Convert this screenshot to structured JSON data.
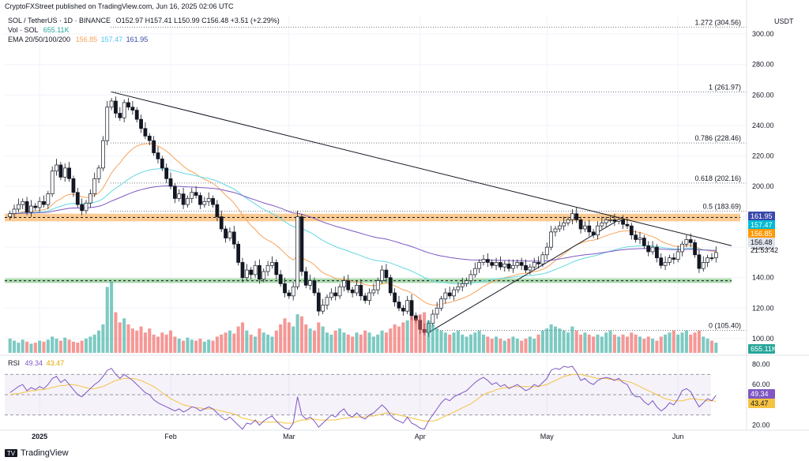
{
  "header": {
    "published": "CryptoFXStreet published on TradingView.com, Jun 16, 2025 02:06 UTC",
    "symbol_line": "SOL / TetherUS · 1D · BINANCE",
    "ohlc": "O152.97 H157.41 L150.99 C156.48 +3.51 (+2.29%)",
    "vol_label": "Vol · SOL",
    "vol_value": "655.11K",
    "ema_label": "EMA 20/50/100/200",
    "ema_values": [
      "156.85",
      "157.47",
      "161.95"
    ],
    "currency": "USDT"
  },
  "colors": {
    "up": "#26a69a",
    "down": "#ef5350",
    "ema20": "#f7a35c",
    "ema50": "#64d8e0",
    "ema100": "#7e57c2",
    "rsi": "#7e57c2",
    "rsi_ma": "#f5c342",
    "resistance_zone": "#f7a03a",
    "support_zone": "#66bb6a"
  },
  "footer": {
    "brand": "TradingView"
  },
  "chart_data": [
    {
      "type": "candlestick",
      "ylim": [
        88,
        312
      ],
      "y_ticks": [
        100,
        120,
        140,
        160,
        180,
        200,
        220,
        240,
        260,
        280,
        300
      ],
      "x_ticks": [
        {
          "label": "2025",
          "i": 7
        },
        {
          "label": "Feb",
          "i": 38
        },
        {
          "label": "Mar",
          "i": 66
        },
        {
          "label": "Apr",
          "i": 97
        },
        {
          "label": "May",
          "i": 127
        },
        {
          "label": "Jun",
          "i": 158
        }
      ],
      "closes": [
        182,
        185,
        188,
        190,
        183,
        187,
        186,
        190,
        188,
        195,
        210,
        214,
        206,
        212,
        205,
        196,
        188,
        184,
        189,
        195,
        205,
        212,
        230,
        252,
        256,
        248,
        245,
        255,
        252,
        250,
        244,
        238,
        233,
        230,
        222,
        218,
        212,
        205,
        200,
        192,
        195,
        188,
        192,
        196,
        194,
        188,
        190,
        192,
        188,
        180,
        172,
        166,
        170,
        162,
        150,
        140,
        145,
        142,
        148,
        139,
        144,
        148,
        150,
        142,
        136,
        130,
        128,
        134,
        180,
        144,
        135,
        138,
        130,
        118,
        122,
        127,
        130,
        128,
        134,
        138,
        132,
        130,
        135,
        128,
        125,
        130,
        132,
        138,
        145,
        140,
        130,
        124,
        120,
        118,
        125,
        115,
        112,
        106,
        104,
        110,
        116,
        120,
        126,
        130,
        128,
        132,
        134,
        136,
        138,
        142,
        146,
        150,
        152,
        150,
        148,
        150,
        147,
        149,
        146,
        148,
        150,
        148,
        145,
        147,
        150,
        149,
        155,
        160,
        170,
        172,
        174,
        176,
        178,
        182,
        178,
        172,
        174,
        170,
        168,
        174,
        176,
        178,
        178,
        177,
        178,
        175,
        174,
        168,
        165,
        166,
        161,
        157,
        160,
        153,
        148,
        150,
        153,
        152,
        157,
        162,
        165,
        163,
        155,
        146,
        150,
        153,
        152.97,
        156.48
      ],
      "volumes": [
        14,
        12,
        10,
        13,
        11,
        9,
        10,
        12,
        11,
        13,
        16,
        14,
        12,
        15,
        13,
        11,
        10,
        12,
        14,
        16,
        18,
        22,
        28,
        65,
        70,
        40,
        30,
        34,
        28,
        24,
        22,
        26,
        20,
        24,
        18,
        16,
        20,
        18,
        22,
        16,
        14,
        12,
        15,
        13,
        12,
        14,
        11,
        13,
        12,
        16,
        18,
        20,
        22,
        19,
        26,
        30,
        22,
        18,
        16,
        24,
        20,
        18,
        16,
        22,
        28,
        34,
        30,
        26,
        38,
        36,
        28,
        24,
        22,
        30,
        26,
        20,
        18,
        22,
        24,
        20,
        18,
        16,
        20,
        18,
        22,
        20,
        16,
        18,
        22,
        20,
        24,
        28,
        26,
        30,
        32,
        36,
        34,
        38,
        40,
        32,
        28,
        24,
        22,
        20,
        18,
        20,
        22,
        18,
        16,
        18,
        20,
        22,
        18,
        16,
        14,
        16,
        14,
        12,
        14,
        16,
        14,
        12,
        14,
        16,
        14,
        18,
        22,
        24,
        28,
        26,
        24,
        22,
        20,
        26,
        22,
        18,
        20,
        18,
        16,
        18,
        16,
        20,
        22,
        18,
        16,
        18,
        16,
        20,
        18,
        16,
        14,
        16,
        14,
        12,
        16,
        18,
        20,
        22,
        18,
        20,
        22,
        18,
        20,
        22,
        16,
        14,
        12,
        10
      ],
      "rsi": [
        52,
        55,
        58,
        60,
        54,
        57,
        55,
        58,
        56,
        60,
        66,
        68,
        62,
        65,
        60,
        55,
        50,
        48,
        52,
        56,
        60,
        63,
        68,
        74,
        76,
        70,
        66,
        70,
        67,
        64,
        60,
        56,
        52,
        50,
        45,
        42,
        40,
        38,
        36,
        34,
        36,
        33,
        35,
        38,
        37,
        34,
        36,
        38,
        36,
        32,
        28,
        25,
        28,
        24,
        20,
        16,
        22,
        21,
        25,
        20,
        24,
        27,
        29,
        24,
        20,
        17,
        16,
        22,
        48,
        30,
        26,
        28,
        24,
        18,
        22,
        26,
        30,
        28,
        33,
        36,
        30,
        28,
        32,
        28,
        26,
        30,
        32,
        36,
        40,
        36,
        30,
        26,
        24,
        22,
        28,
        22,
        20,
        17,
        16,
        24,
        30,
        36,
        42,
        46,
        44,
        48,
        50,
        52,
        54,
        58,
        62,
        65,
        67,
        64,
        60,
        62,
        58,
        60,
        56,
        58,
        60,
        57,
        54,
        56,
        60,
        58,
        62,
        66,
        74,
        76,
        75,
        78,
        77,
        78,
        72,
        64,
        66,
        62,
        60,
        64,
        66,
        67,
        66,
        64,
        66,
        62,
        60,
        52,
        48,
        48,
        43,
        40,
        44,
        38,
        34,
        37,
        42,
        40,
        46,
        54,
        56,
        53,
        45,
        38,
        42,
        46,
        44,
        49.34
      ],
      "rsi_ma": [
        50,
        51,
        51,
        52,
        53,
        54,
        54,
        55,
        55,
        56,
        57,
        58,
        59,
        59,
        60,
        60,
        59,
        58,
        57,
        56,
        56,
        57,
        58,
        60,
        62,
        64,
        65,
        66,
        66,
        66,
        65,
        64,
        62,
        60,
        58,
        55,
        52,
        49,
        46,
        44,
        42,
        40,
        39,
        38,
        37,
        37,
        36,
        36,
        36,
        35,
        34,
        33,
        32,
        31,
        29,
        27,
        26,
        25,
        24,
        23,
        23,
        23,
        23,
        23,
        23,
        22,
        22,
        22,
        24,
        25,
        25,
        26,
        26,
        25,
        25,
        25,
        25,
        25,
        26,
        27,
        27,
        28,
        28,
        28,
        28,
        29,
        29,
        30,
        31,
        32,
        32,
        31,
        30,
        29,
        28,
        27,
        26,
        25,
        24,
        24,
        24,
        25,
        27,
        29,
        31,
        33,
        35,
        37,
        39,
        41,
        44,
        47,
        50,
        52,
        53,
        55,
        56,
        57,
        57,
        58,
        58,
        58,
        58,
        58,
        58,
        58,
        59,
        60,
        62,
        64,
        66,
        68,
        69,
        70,
        70,
        70,
        69,
        68,
        67,
        66,
        66,
        66,
        65,
        65,
        64,
        64,
        63,
        62,
        60,
        58,
        56,
        54,
        52,
        50,
        48,
        46,
        45,
        44,
        44,
        44,
        45,
        46,
        46,
        45,
        45,
        44,
        44,
        43.47
      ],
      "ema20_values": [
        156.85
      ],
      "ema50_values": [
        157.47
      ],
      "ema100_values": [
        161.95
      ],
      "price_badges": [
        {
          "label": "161.95",
          "value": 161.95,
          "color": "#3949ab"
        },
        {
          "label": "157.47",
          "value": 157.47,
          "color": "#00bcd4"
        },
        {
          "label": "156.85",
          "value": 156.85,
          "color": "#ff9800"
        },
        {
          "label": "156.48",
          "value": 156.48,
          "color": "#e0e3eb"
        }
      ],
      "countdown": "21:53:42",
      "fib_levels": [
        {
          "label": "1.272 (304.56)",
          "value": 304.56
        },
        {
          "label": "1 (261.97)",
          "value": 261.97
        },
        {
          "label": "0.786 (228.46)",
          "value": 228.46
        },
        {
          "label": "0.618 (202.16)",
          "value": 202.16
        },
        {
          "label": "0.5 (183.69)",
          "value": 183.69
        },
        {
          "label": "0 (105.40)",
          "value": 105.4
        }
      ],
      "zones": [
        {
          "name": "resistance",
          "from": 177,
          "to": 182
        },
        {
          "name": "support",
          "from": 136.5,
          "to": 139.5
        }
      ]
    },
    {
      "type": "line",
      "title": "RSI",
      "series": [
        {
          "name": "RSI",
          "value_label": "49.34"
        },
        {
          "name": "RSI MA",
          "value_label": "43.47"
        }
      ],
      "rsi_label": "RSI",
      "rsi_value": "49.34",
      "rsi_ma_value": "43.47",
      "ylim": [
        15,
        85
      ],
      "y_ticks": [
        20,
        40,
        60,
        80
      ],
      "bands": [
        30,
        70
      ],
      "mid": 50
    }
  ]
}
